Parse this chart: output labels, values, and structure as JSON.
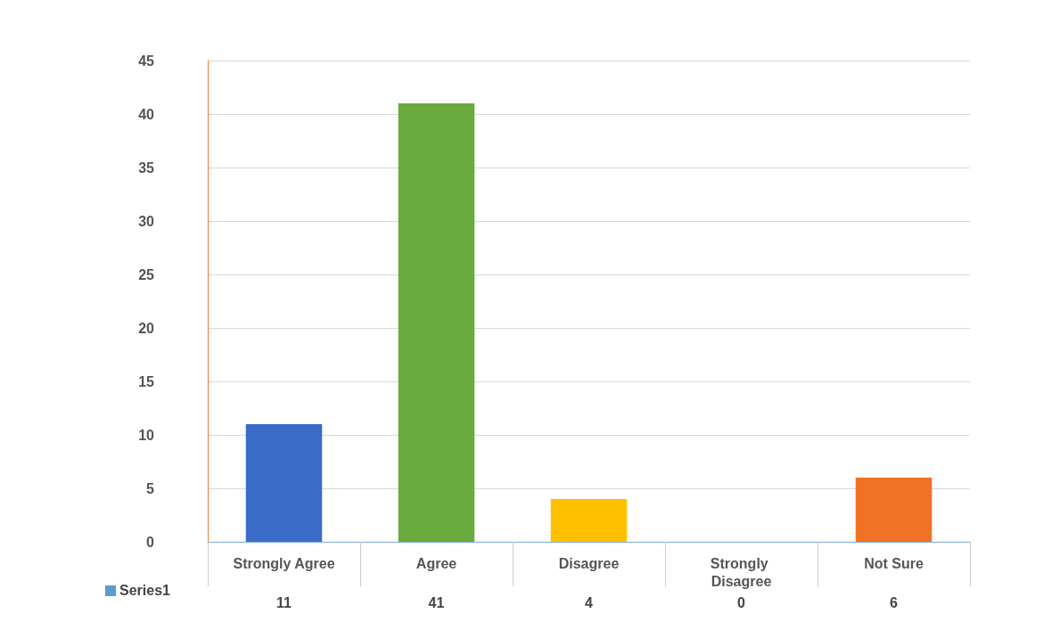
{
  "chart_data": {
    "type": "bar",
    "categories": [
      "Strongly Agree",
      "Agree",
      "Disagree",
      "Strongly Disagree",
      "Not Sure"
    ],
    "series": [
      {
        "name": "Series1",
        "color": "#5b9bd5",
        "colors": [
          "#3a6cc8",
          "#6aab3f",
          "#ffc000",
          "#2e75b6",
          "#f07224"
        ],
        "values": [
          11,
          41,
          4,
          0,
          6
        ]
      }
    ],
    "ylim": [
      0,
      45
    ],
    "yticks": [
      0,
      5,
      10,
      15,
      20,
      25,
      30,
      35,
      40,
      45
    ],
    "grid": "y",
    "legend": "bottom left",
    "data_labels": true
  }
}
